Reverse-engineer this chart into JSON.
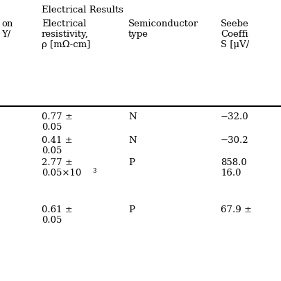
{
  "header_title": "Electrical Results",
  "col0_text": "on\nY/",
  "col1_header": "Electrical\nresistivity,\nρ [mΩ-cm]",
  "col2_header": "Semiconductor\ntype",
  "col3_header": "Seebe\nCoeffi\nS [μV/",
  "rows": [
    {
      "c1": "0.77 ±\n0.05",
      "c2": "N",
      "c3": "−32.0"
    },
    {
      "c1": "0.41 ±\n0.05",
      "c2": "N",
      "c3": "−30.2"
    },
    {
      "c1": "2.77 ±\n0.05×10",
      "c1_sup": "3",
      "c2": "P",
      "c3": "858.0\n16.0"
    },
    {
      "c1": "0.61 ±\n0.05",
      "c2": "P",
      "c3": "67.9 ±"
    }
  ],
  "bg_color": "#ffffff",
  "text_color": "#000000",
  "line_color": "#000000",
  "font_size": 9.5,
  "title_font_size": 9.5
}
